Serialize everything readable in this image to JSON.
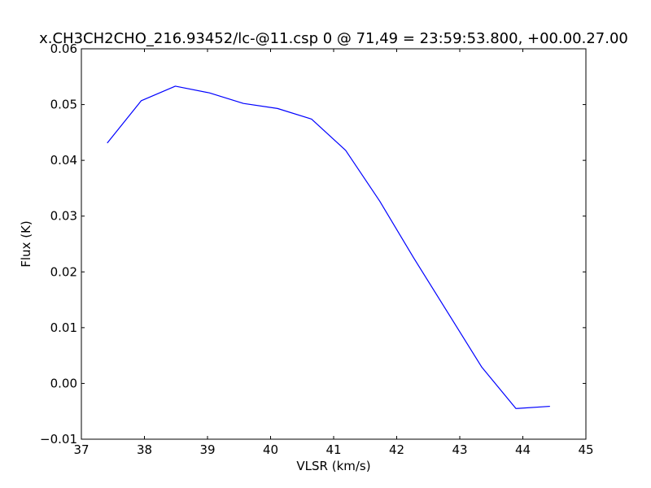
{
  "chart_data": {
    "type": "line",
    "title": "x.CH3CH2CHO_216.93452/lc-@11.csp 0 @ 71,49 = 23:59:53.800, +00.00.27.00",
    "xlabel": "VLSR (km/s)",
    "ylabel": "Flux (K)",
    "xlim": [
      37,
      45
    ],
    "ylim": [
      -0.01,
      0.06
    ],
    "xticks": [
      37,
      38,
      39,
      40,
      41,
      42,
      43,
      44,
      45
    ],
    "xtick_labels": [
      "37",
      "38",
      "39",
      "40",
      "41",
      "42",
      "43",
      "44",
      "45"
    ],
    "yticks": [
      -0.01,
      0.0,
      0.01,
      0.02,
      0.03,
      0.04,
      0.05,
      0.06
    ],
    "ytick_labels": [
      "−0.01",
      "0.00",
      "0.01",
      "0.02",
      "0.03",
      "0.04",
      "0.05",
      "0.06"
    ],
    "grid": false,
    "series": [
      {
        "color": "#0000ff",
        "x": [
          37.41,
          37.95,
          38.49,
          39.03,
          39.57,
          40.11,
          40.65,
          41.19,
          41.73,
          42.27,
          42.81,
          43.35,
          43.89,
          44.43
        ],
        "y": [
          0.0431,
          0.0507,
          0.0533,
          0.0521,
          0.0502,
          0.0493,
          0.0474,
          0.0418,
          0.0327,
          0.0225,
          0.0127,
          0.0029,
          -0.0045,
          -0.0041
        ]
      }
    ]
  }
}
